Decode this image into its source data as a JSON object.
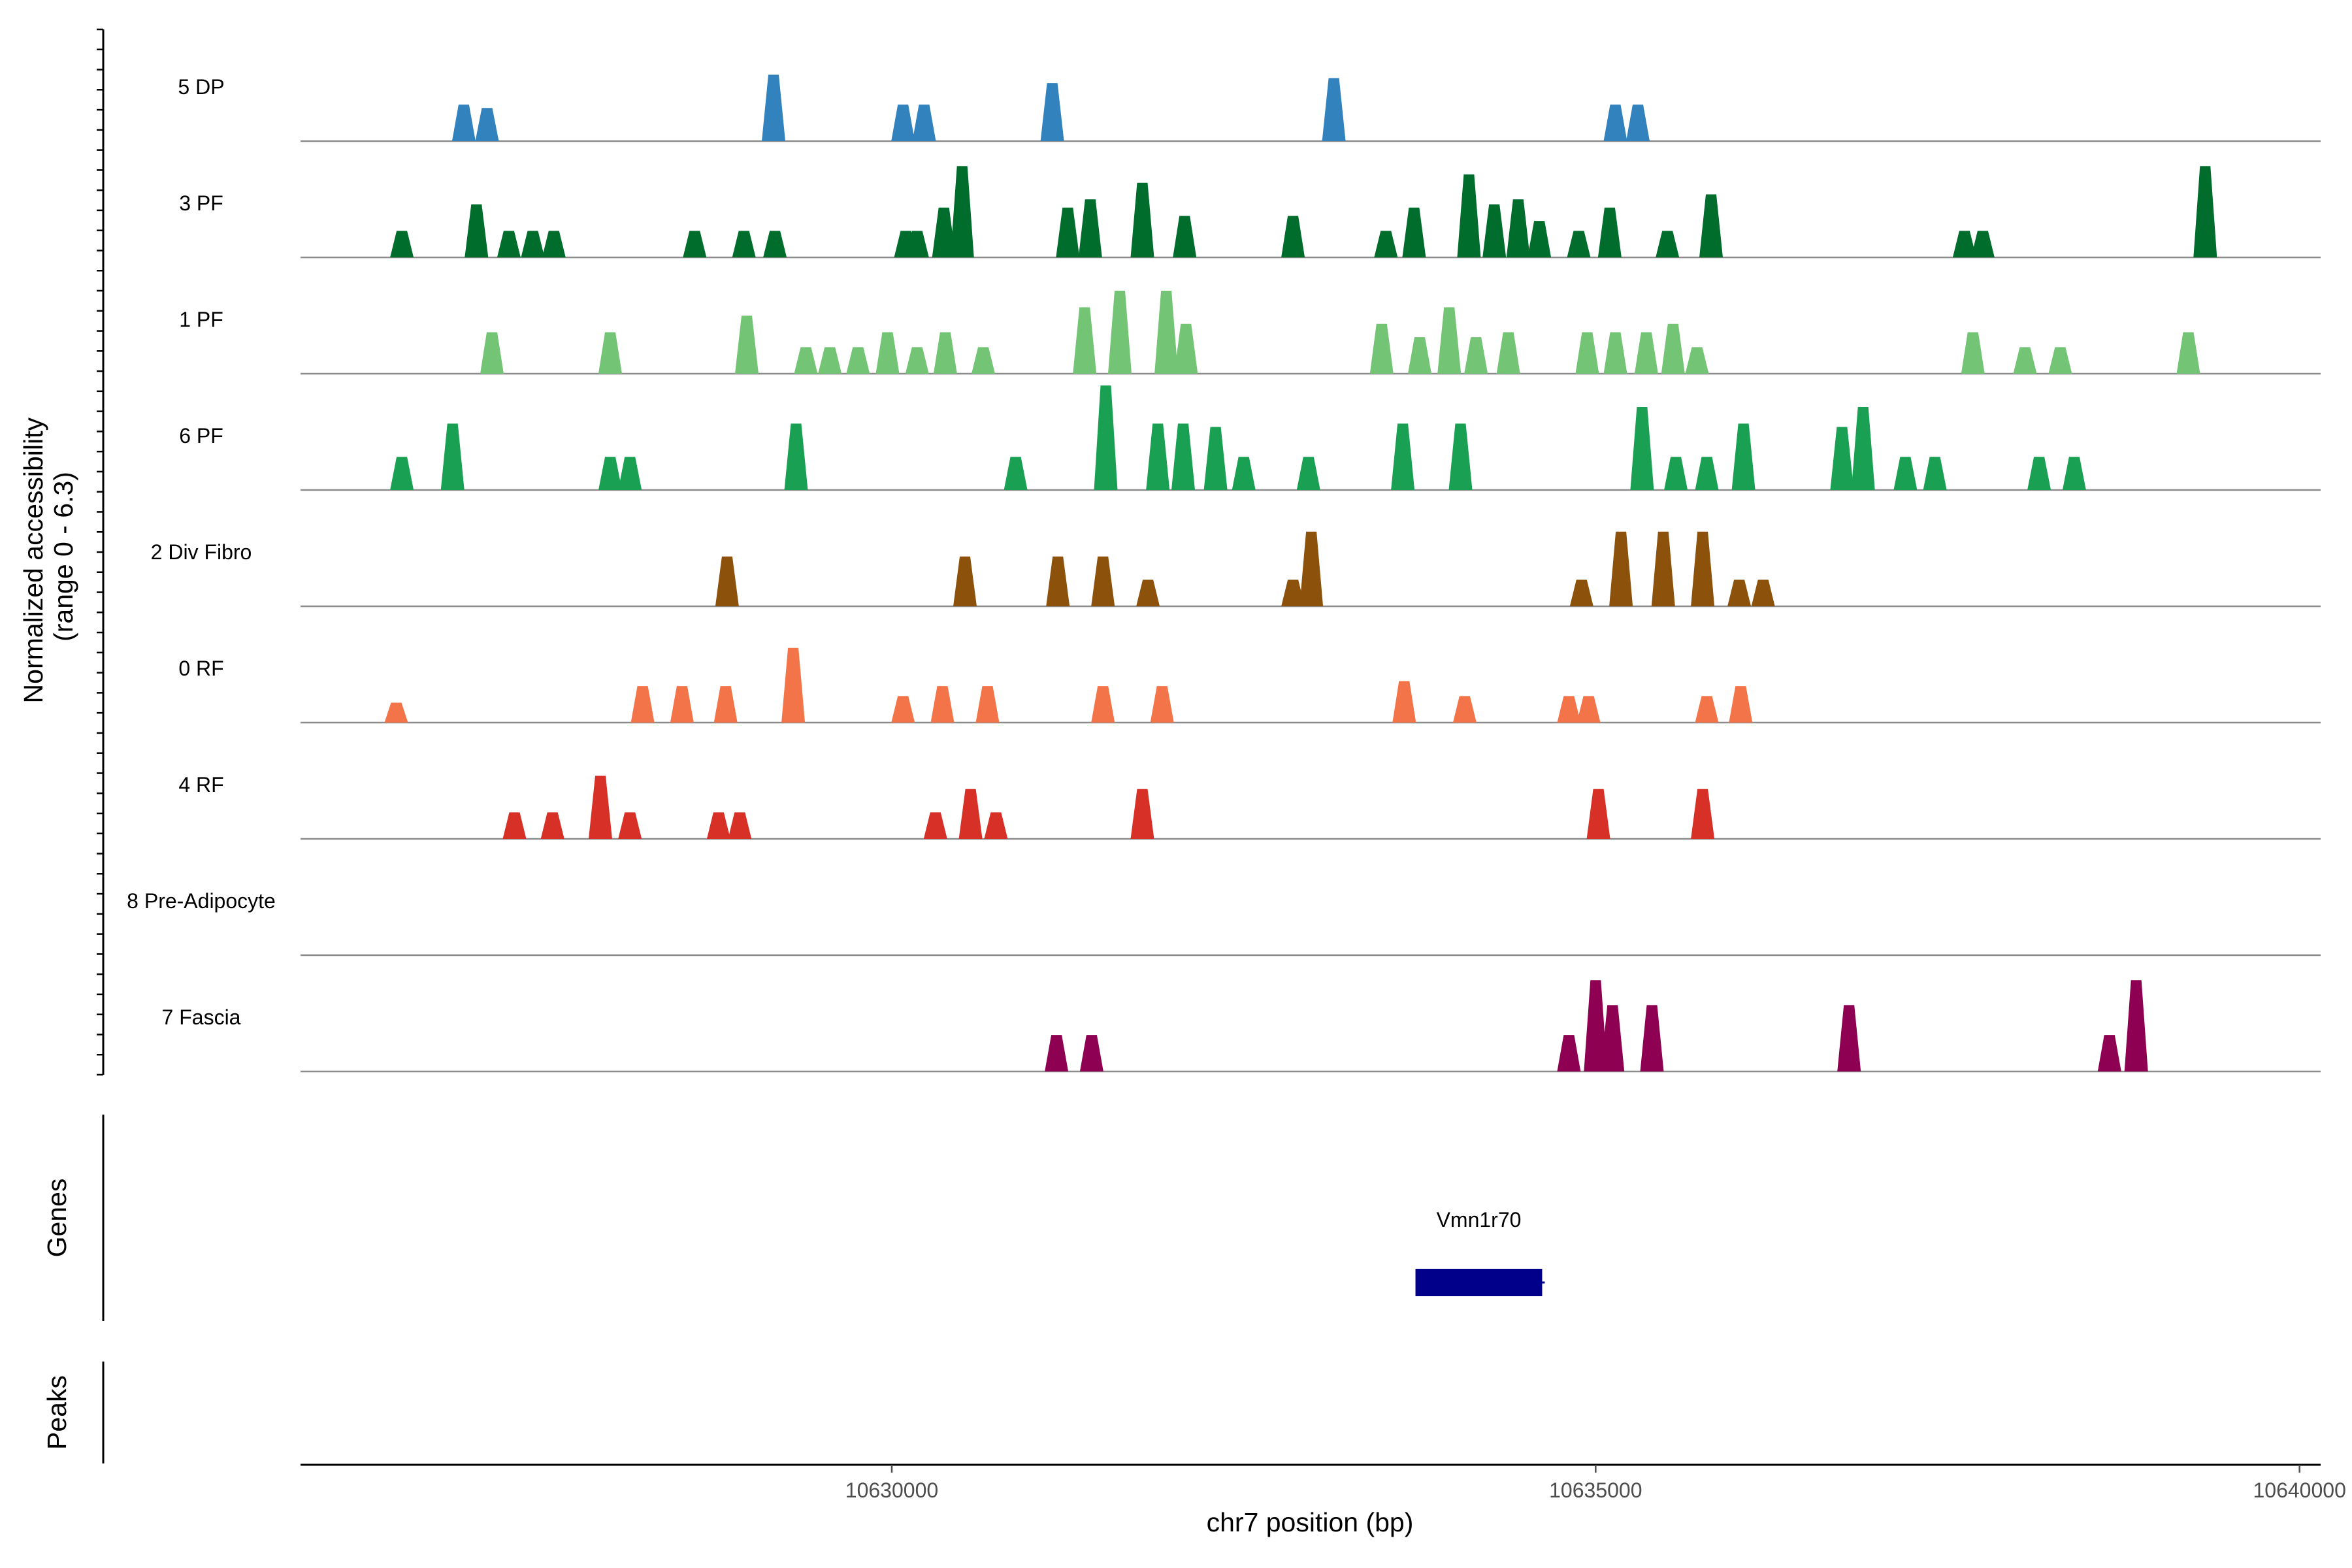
{
  "chart_data": {
    "type": "area",
    "title": "",
    "xlabel": "chr7 position (bp)",
    "ylabel": "Normalized accessibility (range 0 - 6.3)",
    "ylabel_lines": [
      "Normalized accessibility",
      "(range 0 - 6.3)"
    ],
    "y_range": [
      0,
      6.3
    ],
    "x_range": [
      10625800,
      10640150
    ],
    "x_ticks": [
      10630000,
      10635000,
      10640000
    ],
    "x_tick_labels": [
      "10630000",
      "10635000",
      "10640000"
    ],
    "grid": false,
    "tracks": [
      {
        "name": "5 DP",
        "color": "#3182BD",
        "peaks": [
          [
            10626960,
            2.2
          ],
          [
            10627125,
            2.0
          ],
          [
            10629160,
            4.0
          ],
          [
            10630080,
            2.2
          ],
          [
            10630230,
            2.2
          ],
          [
            10631140,
            3.5
          ],
          [
            10633140,
            3.8
          ],
          [
            10635140,
            2.2
          ],
          [
            10635300,
            2.2
          ]
        ]
      },
      {
        "name": "3 PF",
        "color": "#006D2C",
        "peaks": [
          [
            10626520,
            1.6
          ],
          [
            10627050,
            3.2
          ],
          [
            10627280,
            1.6
          ],
          [
            10627450,
            1.6
          ],
          [
            10627600,
            1.6
          ],
          [
            10628600,
            1.6
          ],
          [
            10628950,
            1.6
          ],
          [
            10629170,
            1.6
          ],
          [
            10630100,
            1.6
          ],
          [
            10630180,
            1.6
          ],
          [
            10630370,
            3.0
          ],
          [
            10630500,
            5.5
          ],
          [
            10631250,
            3.0
          ],
          [
            10631410,
            3.5
          ],
          [
            10631780,
            4.5
          ],
          [
            10632080,
            2.5
          ],
          [
            10632850,
            2.5
          ],
          [
            10633510,
            1.6
          ],
          [
            10633710,
            3.0
          ],
          [
            10634100,
            5.0
          ],
          [
            10634280,
            3.2
          ],
          [
            10634450,
            3.5
          ],
          [
            10634600,
            2.2
          ],
          [
            10634880,
            1.6
          ],
          [
            10635100,
            3.0
          ],
          [
            10635510,
            1.6
          ],
          [
            10635820,
            3.8
          ],
          [
            10637620,
            1.6
          ],
          [
            10637750,
            1.6
          ],
          [
            10639330,
            5.5
          ]
        ]
      },
      {
        "name": "1 PF",
        "color": "#74C476",
        "peaks": [
          [
            10627160,
            2.5
          ],
          [
            10628000,
            2.5
          ],
          [
            10628970,
            3.5
          ],
          [
            10629390,
            1.6
          ],
          [
            10629560,
            1.6
          ],
          [
            10629760,
            1.6
          ],
          [
            10629970,
            2.5
          ],
          [
            10630180,
            1.6
          ],
          [
            10630380,
            2.5
          ],
          [
            10630650,
            1.6
          ],
          [
            10631370,
            4.0
          ],
          [
            10631620,
            5.0
          ],
          [
            10631950,
            5.0
          ],
          [
            10632090,
            3.0
          ],
          [
            10633480,
            3.0
          ],
          [
            10633750,
            2.2
          ],
          [
            10633960,
            4.0
          ],
          [
            10634150,
            2.2
          ],
          [
            10634380,
            2.5
          ],
          [
            10634940,
            2.5
          ],
          [
            10635140,
            2.5
          ],
          [
            10635360,
            2.5
          ],
          [
            10635550,
            3.0
          ],
          [
            10635720,
            1.6
          ],
          [
            10637680,
            2.5
          ],
          [
            10638050,
            1.6
          ],
          [
            10638300,
            1.6
          ],
          [
            10639210,
            2.5
          ]
        ]
      },
      {
        "name": "6 PF",
        "color": "#1AA052",
        "peaks": [
          [
            10626520,
            2.0
          ],
          [
            10626880,
            4.0
          ],
          [
            10628000,
            2.0
          ],
          [
            10628140,
            2.0
          ],
          [
            10629320,
            4.0
          ],
          [
            10630880,
            2.0
          ],
          [
            10631520,
            6.3
          ],
          [
            10631890,
            4.0
          ],
          [
            10632070,
            4.0
          ],
          [
            10632300,
            3.8
          ],
          [
            10632500,
            2.0
          ],
          [
            10632960,
            2.0
          ],
          [
            10633630,
            4.0
          ],
          [
            10634040,
            4.0
          ],
          [
            10635330,
            5.0
          ],
          [
            10635570,
            2.0
          ],
          [
            10635790,
            2.0
          ],
          [
            10636050,
            4.0
          ],
          [
            10636750,
            3.8
          ],
          [
            10636900,
            5.0
          ],
          [
            10637200,
            2.0
          ],
          [
            10637410,
            2.0
          ],
          [
            10638150,
            2.0
          ],
          [
            10638400,
            2.0
          ]
        ]
      },
      {
        "name": "2 Div Fibro",
        "color": "#8C510A",
        "peaks": [
          [
            10628830,
            3.0
          ],
          [
            10630520,
            3.0
          ],
          [
            10631180,
            3.0
          ],
          [
            10631500,
            3.0
          ],
          [
            10631820,
            1.6
          ],
          [
            10632850,
            1.6
          ],
          [
            10632980,
            4.5
          ],
          [
            10634900,
            1.6
          ],
          [
            10635180,
            4.5
          ],
          [
            10635480,
            4.5
          ],
          [
            10635760,
            4.5
          ],
          [
            10636020,
            1.6
          ],
          [
            10636190,
            1.6
          ]
        ]
      },
      {
        "name": "0 RF",
        "color": "#F4744A",
        "peaks": [
          [
            10626480,
            1.2
          ],
          [
            10628230,
            2.2
          ],
          [
            10628510,
            2.2
          ],
          [
            10628820,
            2.2
          ],
          [
            10629300,
            4.5
          ],
          [
            10630080,
            1.6
          ],
          [
            10630360,
            2.2
          ],
          [
            10630680,
            2.2
          ],
          [
            10631500,
            2.2
          ],
          [
            10631920,
            2.2
          ],
          [
            10633640,
            2.5
          ],
          [
            10634070,
            1.6
          ],
          [
            10634810,
            1.6
          ],
          [
            10634950,
            1.6
          ],
          [
            10635790,
            1.6
          ],
          [
            10636030,
            2.2
          ]
        ]
      },
      {
        "name": "4 RF",
        "color": "#D73027",
        "peaks": [
          [
            10627320,
            1.6
          ],
          [
            10627590,
            1.6
          ],
          [
            10627930,
            3.8
          ],
          [
            10628140,
            1.6
          ],
          [
            10628770,
            1.6
          ],
          [
            10628920,
            1.6
          ],
          [
            10630310,
            1.6
          ],
          [
            10630560,
            3.0
          ],
          [
            10630740,
            1.6
          ],
          [
            10631780,
            3.0
          ],
          [
            10635020,
            3.0
          ],
          [
            10635760,
            3.0
          ]
        ]
      },
      {
        "name": "8 Pre-Adipocyte",
        "color": "#969696",
        "peaks": []
      },
      {
        "name": "7 Fascia",
        "color": "#8E0152",
        "peaks": [
          [
            10631170,
            2.2
          ],
          [
            10631420,
            2.2
          ],
          [
            10634810,
            2.2
          ],
          [
            10635000,
            5.5
          ],
          [
            10635120,
            4.0
          ],
          [
            10635400,
            4.0
          ],
          [
            10636800,
            4.0
          ],
          [
            10638650,
            2.2
          ],
          [
            10638840,
            5.5
          ]
        ]
      }
    ],
    "gene_track": {
      "label": "Genes",
      "genes": [
        {
          "name": "Vmn1r70",
          "start": 10633720,
          "end": 10634620,
          "color": "#00008B"
        }
      ]
    },
    "peak_track": {
      "label": "Peaks",
      "peaks": []
    }
  }
}
